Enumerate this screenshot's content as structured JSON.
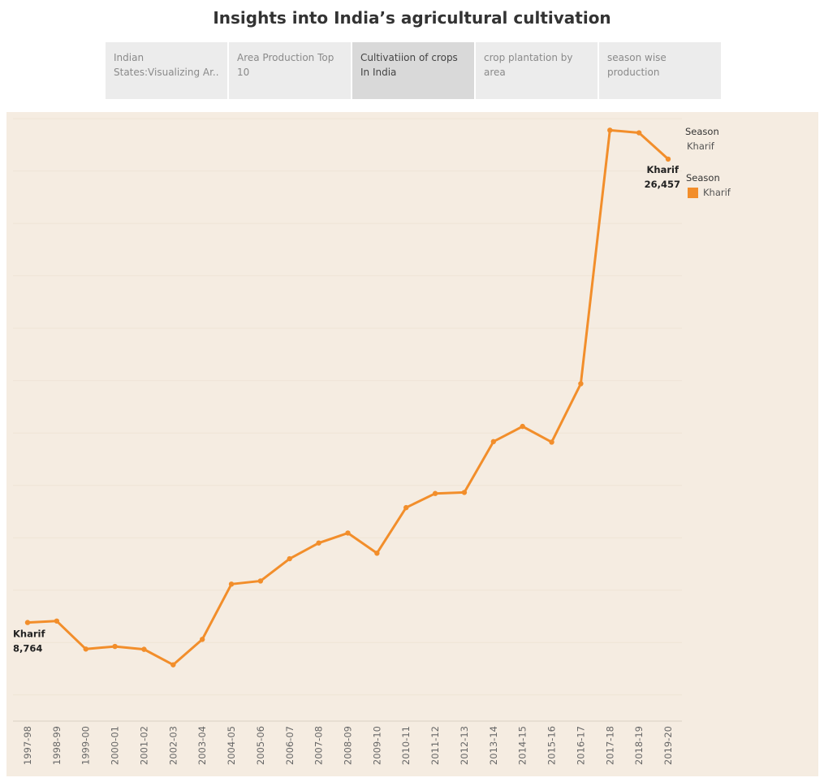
{
  "page": {
    "title": "Insights into India’s agricultural cultivation"
  },
  "tabs": [
    {
      "label": "Indian States:Visualizing Ar..",
      "active": false
    },
    {
      "label": "Area Production Top 10",
      "active": false
    },
    {
      "label": "Cultivatiion of crops In India",
      "active": true
    },
    {
      "label": "crop plantation by area",
      "active": false
    },
    {
      "label": "season wise production",
      "active": false
    }
  ],
  "filter_legend": {
    "title": "Season",
    "value": "Kharif"
  },
  "color_legend": {
    "title": "Season",
    "items": [
      {
        "label": "Kharif",
        "color": "#f28e2b"
      }
    ]
  },
  "chart_data": {
    "type": "line",
    "title": "",
    "xlabel": "",
    "ylabel": "",
    "ylim": [
      5000,
      28500
    ],
    "grid": true,
    "legend_position": "right",
    "categories": [
      "1997-98",
      "1998-99",
      "1999-00",
      "2000-01",
      "2001-02",
      "2002-03",
      "2003-04",
      "2004-05",
      "2005-06",
      "2006-07",
      "2007-08",
      "2008-09",
      "2009-10",
      "2010-11",
      "2011-12",
      "2012-13",
      "2013-14",
      "2014-15",
      "2015-16",
      "2016-17",
      "2017-18",
      "2018-19",
      "2019-20"
    ],
    "series": [
      {
        "name": "Kharif",
        "color": "#f28e2b",
        "values": [
          8764,
          8820,
          7750,
          7850,
          7740,
          7150,
          8120,
          10230,
          10350,
          11200,
          11800,
          12180,
          11410,
          13150,
          13690,
          13730,
          15670,
          16250,
          15650,
          17880,
          27560,
          27460,
          26457
        ]
      }
    ],
    "annotations": [
      {
        "label": "Kharif",
        "value": "8,764",
        "at": "1997-98"
      },
      {
        "label": "Kharif",
        "value": "26,457",
        "at": "2019-20"
      }
    ]
  }
}
